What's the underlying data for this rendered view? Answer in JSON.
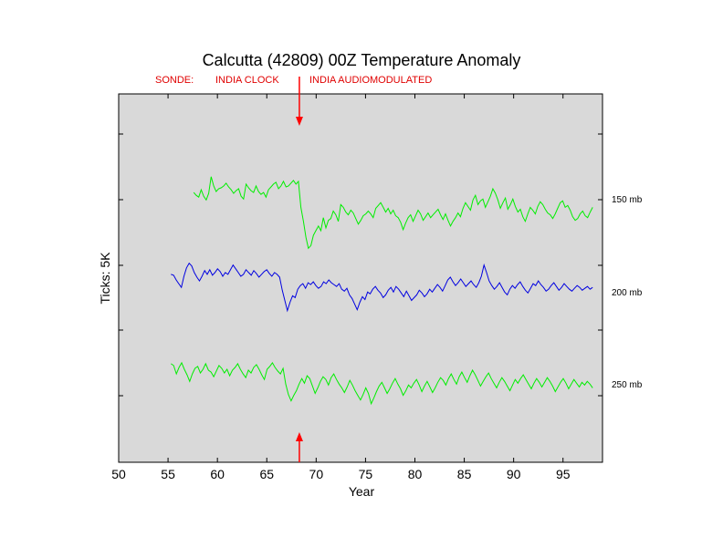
{
  "chart_data": {
    "type": "line",
    "title": "Calcutta (42809) 00Z Temperature Anomaly",
    "xlabel": "Year",
    "ylabel": "Ticks: 5K",
    "xlim": [
      50,
      99
    ],
    "x_ticks": [
      "50",
      "55",
      "60",
      "65",
      "70",
      "75",
      "80",
      "85",
      "90",
      "95"
    ],
    "grid": false,
    "background": "#d9d9d9",
    "sonde_label": "SONDE:",
    "sonde_annotations": [
      {
        "label": "INDIA CLOCK",
        "x": 60.5
      },
      {
        "label": "INDIA AUDIOMODULATED",
        "x": 72.5
      }
    ],
    "change_point": {
      "x": 68.3,
      "color": "#ff0000"
    },
    "series": [
      {
        "name": "150 mb",
        "color": "#00ee00",
        "x_start": 57.6,
        "x_end": 98.0,
        "values": [
          9.2,
          8.9,
          8.7,
          9.5,
          8.8,
          8.4,
          9.1,
          10.9,
          9.9,
          9.3,
          9.6,
          9.7,
          9.9,
          10.2,
          9.8,
          9.5,
          9.1,
          9.4,
          9.6,
          8.8,
          8.5,
          10.1,
          9.7,
          9.4,
          9.2,
          9.9,
          9.3,
          9.0,
          9.2,
          8.7,
          9.5,
          9.8,
          10.1,
          10.3,
          9.6,
          9.9,
          10.4,
          9.8,
          9.9,
          10.2,
          10.5,
          10.1,
          10.4,
          7.6,
          6.1,
          4.4,
          3.2,
          3.5,
          4.6,
          5.1,
          5.6,
          5.1,
          6.5,
          5.4,
          6.2,
          6.4,
          7.2,
          6.8,
          6.1,
          7.9,
          7.6,
          7.1,
          6.8,
          7.3,
          7.0,
          6.4,
          5.8,
          6.2,
          6.7,
          6.9,
          7.2,
          6.9,
          6.5,
          7.5,
          7.8,
          8.1,
          7.6,
          7.1,
          7.5,
          6.9,
          7.3,
          6.7,
          6.5,
          6.0,
          5.2,
          5.9,
          6.5,
          6.8,
          6.1,
          6.7,
          7.3,
          6.9,
          6.2,
          6.6,
          7.0,
          6.5,
          6.8,
          7.1,
          7.4,
          6.8,
          6.3,
          6.9,
          6.2,
          5.6,
          6.1,
          6.5,
          7.0,
          6.6,
          7.5,
          8.1,
          7.7,
          7.3,
          8.4,
          8.9,
          7.9,
          8.3,
          8.5,
          7.6,
          8.2,
          8.8,
          9.6,
          9.1,
          8.4,
          7.5,
          8.1,
          8.6,
          7.4,
          7.9,
          8.5,
          7.7,
          7.1,
          7.4,
          6.6,
          6.1,
          6.9,
          7.6,
          7.3,
          6.9,
          7.7,
          8.2,
          7.9,
          7.4,
          7.0,
          6.8,
          6.4,
          6.9,
          7.5,
          8.1,
          8.3,
          7.6,
          7.8,
          7.3,
          6.6,
          6.2,
          6.4,
          6.9,
          7.2,
          6.7,
          6.5,
          7.1,
          7.6
        ]
      },
      {
        "name": "200 mb",
        "color": "#0000e0",
        "x_start": 55.3,
        "x_end": 98.0,
        "values": [
          0.4,
          0.3,
          -0.2,
          -0.6,
          -1.0,
          0.2,
          1.1,
          1.6,
          1.3,
          0.6,
          0.1,
          -0.3,
          0.2,
          0.8,
          0.4,
          0.9,
          0.3,
          0.6,
          1.0,
          0.7,
          0.2,
          0.6,
          0.4,
          0.9,
          1.4,
          1.0,
          0.6,
          0.2,
          0.4,
          0.9,
          0.6,
          0.3,
          0.8,
          0.5,
          0.1,
          0.4,
          0.7,
          0.9,
          0.5,
          0.2,
          0.6,
          0.4,
          0.1,
          -1.3,
          -2.4,
          -3.5,
          -2.6,
          -1.9,
          -2.1,
          -1.2,
          -0.8,
          -0.6,
          -1.1,
          -0.5,
          -0.7,
          -0.4,
          -0.8,
          -1.1,
          -0.9,
          -0.4,
          -0.6,
          -0.2,
          -0.5,
          -0.7,
          -0.9,
          -0.6,
          -1.2,
          -1.4,
          -1.1,
          -1.8,
          -2.2,
          -2.8,
          -3.4,
          -2.6,
          -2.0,
          -2.3,
          -1.5,
          -1.7,
          -1.2,
          -0.9,
          -1.3,
          -1.6,
          -2.1,
          -1.8,
          -1.3,
          -1.0,
          -1.5,
          -0.9,
          -1.2,
          -1.6,
          -2.0,
          -1.4,
          -1.9,
          -2.4,
          -2.1,
          -1.8,
          -1.3,
          -1.6,
          -2.0,
          -1.7,
          -1.2,
          -1.5,
          -1.1,
          -0.7,
          -1.0,
          -1.4,
          -0.8,
          -0.2,
          0.1,
          -0.4,
          -0.8,
          -0.5,
          -0.1,
          -0.5,
          -0.9,
          -0.6,
          -0.3,
          -0.7,
          -1.0,
          -0.5,
          0.2,
          1.4,
          0.6,
          -0.3,
          -0.8,
          -1.2,
          -0.9,
          -0.5,
          -1.0,
          -1.5,
          -1.8,
          -1.2,
          -0.8,
          -1.1,
          -0.7,
          -0.4,
          -0.9,
          -1.3,
          -1.6,
          -1.1,
          -0.6,
          -0.8,
          -0.3,
          -0.7,
          -1.0,
          -1.4,
          -1.2,
          -0.8,
          -0.5,
          -0.9,
          -1.3,
          -1.0,
          -0.6,
          -0.9,
          -1.2,
          -1.4,
          -1.1,
          -0.8,
          -1.0,
          -1.3,
          -1.1,
          -0.9,
          -1.2,
          -1.0
        ]
      },
      {
        "name": "250 mb",
        "color": "#00ee00",
        "x_start": 55.3,
        "x_end": 98.0,
        "values": [
          -9.2,
          -9.4,
          -10.3,
          -9.6,
          -9.1,
          -9.8,
          -10.4,
          -11.1,
          -10.3,
          -9.7,
          -9.5,
          -10.2,
          -9.8,
          -9.2,
          -9.9,
          -10.1,
          -10.6,
          -10.0,
          -9.4,
          -9.7,
          -10.2,
          -9.8,
          -10.5,
          -9.9,
          -9.6,
          -9.2,
          -9.8,
          -10.3,
          -10.7,
          -9.9,
          -10.2,
          -9.6,
          -9.3,
          -9.8,
          -10.4,
          -10.9,
          -9.8,
          -9.5,
          -9.1,
          -9.6,
          -10.0,
          -10.3,
          -9.7,
          -11.4,
          -12.5,
          -13.2,
          -12.6,
          -12.1,
          -11.4,
          -10.8,
          -11.3,
          -10.5,
          -10.8,
          -11.6,
          -12.4,
          -11.8,
          -11.1,
          -10.6,
          -10.9,
          -11.5,
          -10.7,
          -10.3,
          -10.9,
          -11.4,
          -11.8,
          -12.3,
          -11.7,
          -11.0,
          -11.5,
          -12.1,
          -12.6,
          -13.1,
          -12.5,
          -11.8,
          -12.4,
          -13.5,
          -12.9,
          -12.2,
          -11.6,
          -11.2,
          -11.8,
          -12.4,
          -11.9,
          -11.3,
          -10.8,
          -11.4,
          -11.9,
          -12.6,
          -12.1,
          -11.5,
          -11.8,
          -11.3,
          -10.9,
          -11.5,
          -12.2,
          -11.6,
          -11.1,
          -11.7,
          -12.3,
          -11.8,
          -11.2,
          -10.7,
          -11.0,
          -11.5,
          -10.8,
          -10.3,
          -10.9,
          -11.4,
          -10.6,
          -10.1,
          -10.7,
          -11.2,
          -10.5,
          -9.9,
          -10.4,
          -11.0,
          -11.6,
          -11.1,
          -10.6,
          -10.2,
          -10.8,
          -11.3,
          -11.8,
          -11.2,
          -10.7,
          -11.1,
          -11.6,
          -12.1,
          -11.5,
          -10.9,
          -11.3,
          -10.8,
          -10.4,
          -10.9,
          -11.4,
          -11.9,
          -11.3,
          -10.8,
          -11.2,
          -11.7,
          -11.2,
          -10.7,
          -11.1,
          -11.6,
          -12.2,
          -11.7,
          -11.2,
          -10.8,
          -11.3,
          -11.9,
          -11.4,
          -10.9,
          -11.3,
          -11.7,
          -11.2,
          -11.5,
          -11.1,
          -11.4,
          -11.8
        ]
      }
    ]
  }
}
